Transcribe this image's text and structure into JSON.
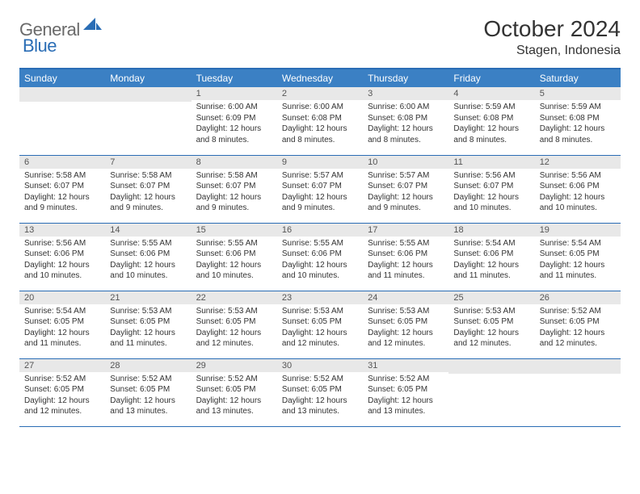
{
  "logo": {
    "general": "General",
    "blue": "Blue"
  },
  "title": "October 2024",
  "location": "Stagen, Indonesia",
  "weekdays": [
    "Sunday",
    "Monday",
    "Tuesday",
    "Wednesday",
    "Thursday",
    "Friday",
    "Saturday"
  ],
  "colors": {
    "header_bg": "#3b80c4",
    "header_border": "#2a6db5",
    "daynum_bg": "#e8e8e8",
    "logo_general": "#6a6a6a",
    "logo_blue": "#2a6db5",
    "text": "#333333",
    "page_bg": "#ffffff"
  },
  "fonts": {
    "title_size": 28,
    "location_size": 16,
    "weekday_size": 12,
    "daynum_size": 11,
    "body_size": 10
  },
  "weeks": [
    [
      {
        "n": "",
        "sr": "",
        "ss": "",
        "dl": ""
      },
      {
        "n": "",
        "sr": "",
        "ss": "",
        "dl": ""
      },
      {
        "n": "1",
        "sr": "Sunrise: 6:00 AM",
        "ss": "Sunset: 6:09 PM",
        "dl": "Daylight: 12 hours and 8 minutes."
      },
      {
        "n": "2",
        "sr": "Sunrise: 6:00 AM",
        "ss": "Sunset: 6:08 PM",
        "dl": "Daylight: 12 hours and 8 minutes."
      },
      {
        "n": "3",
        "sr": "Sunrise: 6:00 AM",
        "ss": "Sunset: 6:08 PM",
        "dl": "Daylight: 12 hours and 8 minutes."
      },
      {
        "n": "4",
        "sr": "Sunrise: 5:59 AM",
        "ss": "Sunset: 6:08 PM",
        "dl": "Daylight: 12 hours and 8 minutes."
      },
      {
        "n": "5",
        "sr": "Sunrise: 5:59 AM",
        "ss": "Sunset: 6:08 PM",
        "dl": "Daylight: 12 hours and 8 minutes."
      }
    ],
    [
      {
        "n": "6",
        "sr": "Sunrise: 5:58 AM",
        "ss": "Sunset: 6:07 PM",
        "dl": "Daylight: 12 hours and 9 minutes."
      },
      {
        "n": "7",
        "sr": "Sunrise: 5:58 AM",
        "ss": "Sunset: 6:07 PM",
        "dl": "Daylight: 12 hours and 9 minutes."
      },
      {
        "n": "8",
        "sr": "Sunrise: 5:58 AM",
        "ss": "Sunset: 6:07 PM",
        "dl": "Daylight: 12 hours and 9 minutes."
      },
      {
        "n": "9",
        "sr": "Sunrise: 5:57 AM",
        "ss": "Sunset: 6:07 PM",
        "dl": "Daylight: 12 hours and 9 minutes."
      },
      {
        "n": "10",
        "sr": "Sunrise: 5:57 AM",
        "ss": "Sunset: 6:07 PM",
        "dl": "Daylight: 12 hours and 9 minutes."
      },
      {
        "n": "11",
        "sr": "Sunrise: 5:56 AM",
        "ss": "Sunset: 6:07 PM",
        "dl": "Daylight: 12 hours and 10 minutes."
      },
      {
        "n": "12",
        "sr": "Sunrise: 5:56 AM",
        "ss": "Sunset: 6:06 PM",
        "dl": "Daylight: 12 hours and 10 minutes."
      }
    ],
    [
      {
        "n": "13",
        "sr": "Sunrise: 5:56 AM",
        "ss": "Sunset: 6:06 PM",
        "dl": "Daylight: 12 hours and 10 minutes."
      },
      {
        "n": "14",
        "sr": "Sunrise: 5:55 AM",
        "ss": "Sunset: 6:06 PM",
        "dl": "Daylight: 12 hours and 10 minutes."
      },
      {
        "n": "15",
        "sr": "Sunrise: 5:55 AM",
        "ss": "Sunset: 6:06 PM",
        "dl": "Daylight: 12 hours and 10 minutes."
      },
      {
        "n": "16",
        "sr": "Sunrise: 5:55 AM",
        "ss": "Sunset: 6:06 PM",
        "dl": "Daylight: 12 hours and 10 minutes."
      },
      {
        "n": "17",
        "sr": "Sunrise: 5:55 AM",
        "ss": "Sunset: 6:06 PM",
        "dl": "Daylight: 12 hours and 11 minutes."
      },
      {
        "n": "18",
        "sr": "Sunrise: 5:54 AM",
        "ss": "Sunset: 6:06 PM",
        "dl": "Daylight: 12 hours and 11 minutes."
      },
      {
        "n": "19",
        "sr": "Sunrise: 5:54 AM",
        "ss": "Sunset: 6:05 PM",
        "dl": "Daylight: 12 hours and 11 minutes."
      }
    ],
    [
      {
        "n": "20",
        "sr": "Sunrise: 5:54 AM",
        "ss": "Sunset: 6:05 PM",
        "dl": "Daylight: 12 hours and 11 minutes."
      },
      {
        "n": "21",
        "sr": "Sunrise: 5:53 AM",
        "ss": "Sunset: 6:05 PM",
        "dl": "Daylight: 12 hours and 11 minutes."
      },
      {
        "n": "22",
        "sr": "Sunrise: 5:53 AM",
        "ss": "Sunset: 6:05 PM",
        "dl": "Daylight: 12 hours and 12 minutes."
      },
      {
        "n": "23",
        "sr": "Sunrise: 5:53 AM",
        "ss": "Sunset: 6:05 PM",
        "dl": "Daylight: 12 hours and 12 minutes."
      },
      {
        "n": "24",
        "sr": "Sunrise: 5:53 AM",
        "ss": "Sunset: 6:05 PM",
        "dl": "Daylight: 12 hours and 12 minutes."
      },
      {
        "n": "25",
        "sr": "Sunrise: 5:53 AM",
        "ss": "Sunset: 6:05 PM",
        "dl": "Daylight: 12 hours and 12 minutes."
      },
      {
        "n": "26",
        "sr": "Sunrise: 5:52 AM",
        "ss": "Sunset: 6:05 PM",
        "dl": "Daylight: 12 hours and 12 minutes."
      }
    ],
    [
      {
        "n": "27",
        "sr": "Sunrise: 5:52 AM",
        "ss": "Sunset: 6:05 PM",
        "dl": "Daylight: 12 hours and 12 minutes."
      },
      {
        "n": "28",
        "sr": "Sunrise: 5:52 AM",
        "ss": "Sunset: 6:05 PM",
        "dl": "Daylight: 12 hours and 13 minutes."
      },
      {
        "n": "29",
        "sr": "Sunrise: 5:52 AM",
        "ss": "Sunset: 6:05 PM",
        "dl": "Daylight: 12 hours and 13 minutes."
      },
      {
        "n": "30",
        "sr": "Sunrise: 5:52 AM",
        "ss": "Sunset: 6:05 PM",
        "dl": "Daylight: 12 hours and 13 minutes."
      },
      {
        "n": "31",
        "sr": "Sunrise: 5:52 AM",
        "ss": "Sunset: 6:05 PM",
        "dl": "Daylight: 12 hours and 13 minutes."
      },
      {
        "n": "",
        "sr": "",
        "ss": "",
        "dl": ""
      },
      {
        "n": "",
        "sr": "",
        "ss": "",
        "dl": ""
      }
    ]
  ]
}
